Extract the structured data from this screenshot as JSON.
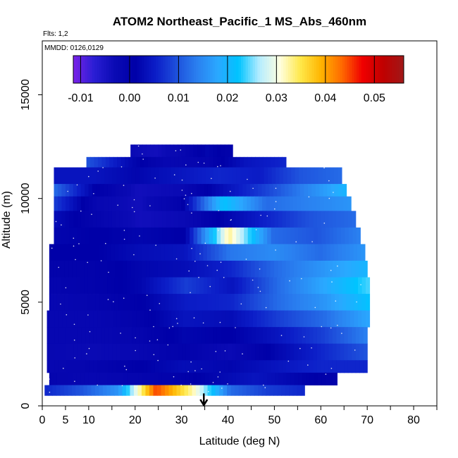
{
  "chart_data": {
    "type": "heatmap",
    "title": "ATOM2 Northeast_Pacific_1 MS_Abs_460nm",
    "note_flights": "Flts: 1,2",
    "note_dates": "MMDD: 0126,0129",
    "xlabel": "Latitude (deg N)",
    "ylabel": "Altitude (m)",
    "xlim": [
      0,
      85
    ],
    "ylim": [
      0,
      17600
    ],
    "x_ticks": [
      0,
      5,
      10,
      20,
      30,
      40,
      50,
      60,
      70,
      80
    ],
    "x_minor_ticks": [
      15,
      25,
      35,
      45,
      55,
      65,
      75,
      85
    ],
    "y_ticks": [
      0,
      5000,
      10000,
      15000
    ],
    "colorbar": {
      "min": -0.0115,
      "max": 0.056,
      "ticks": [
        -0.01,
        0.0,
        0.01,
        0.02,
        0.03,
        0.04,
        0.05
      ],
      "tick_labels": [
        "-0.01",
        "0.00",
        "0.01",
        "0.02",
        "0.03",
        "0.04",
        "0.05"
      ],
      "colors": [
        "#7b22e8",
        "#2a1ed4",
        "#0a0ab4",
        "#0000a8",
        "#0c1ec8",
        "#1e50dc",
        "#2a80f0",
        "#2aa8ff",
        "#00c4ff",
        "#b4ecff",
        "#ffffe0",
        "#ffe84a",
        "#ffb400",
        "#ff6a00",
        "#f00000",
        "#c00000",
        "#a01818"
      ]
    },
    "grid": false,
    "marker": {
      "label": "arrow",
      "x": 34.8,
      "y_top": 600,
      "y_bottom": 0
    },
    "layers": [
      {
        "alt": [
          12000,
          12600
        ],
        "lat": [
          19,
          41
        ],
        "v": [
          -0.003,
          -0.004,
          -0.002,
          0.002,
          0.0
        ]
      },
      {
        "alt": [
          11500,
          12000
        ],
        "lat": [
          9.5,
          52.5
        ],
        "v": [
          0.01,
          0.003,
          -0.002,
          -0.001,
          0.004,
          0.006
        ]
      },
      {
        "alt": [
          10700,
          11500
        ],
        "lat": [
          2.5,
          64.5
        ],
        "v": [
          0.004,
          0.004,
          0.002,
          0.004,
          0.006,
          0.005,
          0.01,
          0.012
        ]
      },
      {
        "alt": [
          10100,
          10700
        ],
        "lat": [
          2.5,
          65.5
        ],
        "v": [
          0.012,
          0.001,
          -0.004,
          -0.003,
          0.003,
          0.008,
          0.014,
          0.02
        ]
      },
      {
        "alt": [
          9400,
          10100
        ],
        "lat": [
          2.5,
          66.5
        ],
        "v": [
          0.008,
          -0.002,
          -0.004,
          0.0,
          0.022,
          0.012,
          0.014,
          0.016
        ]
      },
      {
        "alt": [
          8600,
          9400
        ],
        "lat": [
          2.5,
          67.5
        ],
        "v": [
          0.003,
          -0.001,
          -0.004,
          -0.003,
          0.002,
          0.006,
          0.01,
          0.012
        ]
      },
      {
        "alt": [
          7800,
          8600
        ],
        "lat": [
          2.5,
          68.5
        ],
        "v": [
          0.002,
          0.001,
          0.002,
          0.001,
          0.033,
          0.012,
          0.01,
          0.014
        ]
      },
      {
        "alt": [
          7000,
          7800
        ],
        "lat": [
          1.5,
          69.5
        ],
        "v": [
          0.001,
          0.001,
          0.003,
          0.004,
          0.013,
          0.015,
          0.012,
          0.016
        ]
      },
      {
        "alt": [
          6200,
          7000
        ],
        "lat": [
          1.5,
          70.0
        ],
        "v": [
          0.0,
          0.0,
          0.002,
          0.003,
          0.006,
          0.012,
          0.016,
          0.02
        ]
      },
      {
        "alt": [
          5400,
          6200
        ],
        "lat": [
          1.5,
          70.5
        ],
        "v": [
          -0.001,
          0.0,
          0.002,
          0.008,
          0.004,
          0.012,
          0.018,
          0.024
        ]
      },
      {
        "alt": [
          4600,
          5400
        ],
        "lat": [
          1.5,
          70.5
        ],
        "v": [
          -0.002,
          -0.001,
          0.001,
          0.005,
          0.006,
          0.012,
          0.016,
          0.022
        ]
      },
      {
        "alt": [
          3800,
          4600
        ],
        "lat": [
          1.0,
          70.5
        ],
        "v": [
          -0.002,
          -0.002,
          0.0,
          0.004,
          0.003,
          0.008,
          0.012,
          0.018
        ]
      },
      {
        "alt": [
          3000,
          3800
        ],
        "lat": [
          1.0,
          70.0
        ],
        "v": [
          -0.002,
          -0.002,
          -0.001,
          0.002,
          0.001,
          0.004,
          0.008,
          0.014
        ]
      },
      {
        "alt": [
          2200,
          3000
        ],
        "lat": [
          1.0,
          70.0
        ],
        "v": [
          -0.002,
          -0.003,
          -0.002,
          0.0,
          -0.003,
          0.002,
          0.006,
          0.01
        ]
      },
      {
        "alt": [
          1600,
          2200
        ],
        "lat": [
          1.0,
          70.0
        ],
        "v": [
          -0.002,
          -0.001,
          0.001,
          0.003,
          0.002,
          0.004,
          0.006,
          0.006
        ]
      },
      {
        "alt": [
          1000,
          1600
        ],
        "lat": [
          1.5,
          63.5
        ],
        "v": [
          -0.001,
          -0.002,
          -0.001,
          0.0,
          0.002,
          0.004,
          0.002,
          0.0
        ]
      },
      {
        "alt": [
          500,
          1000
        ],
        "lat": [
          0.5,
          56.5
        ],
        "v": [
          0.006,
          0.01,
          0.016,
          0.045,
          0.032,
          0.012,
          0.008,
          0.006
        ]
      }
    ]
  }
}
